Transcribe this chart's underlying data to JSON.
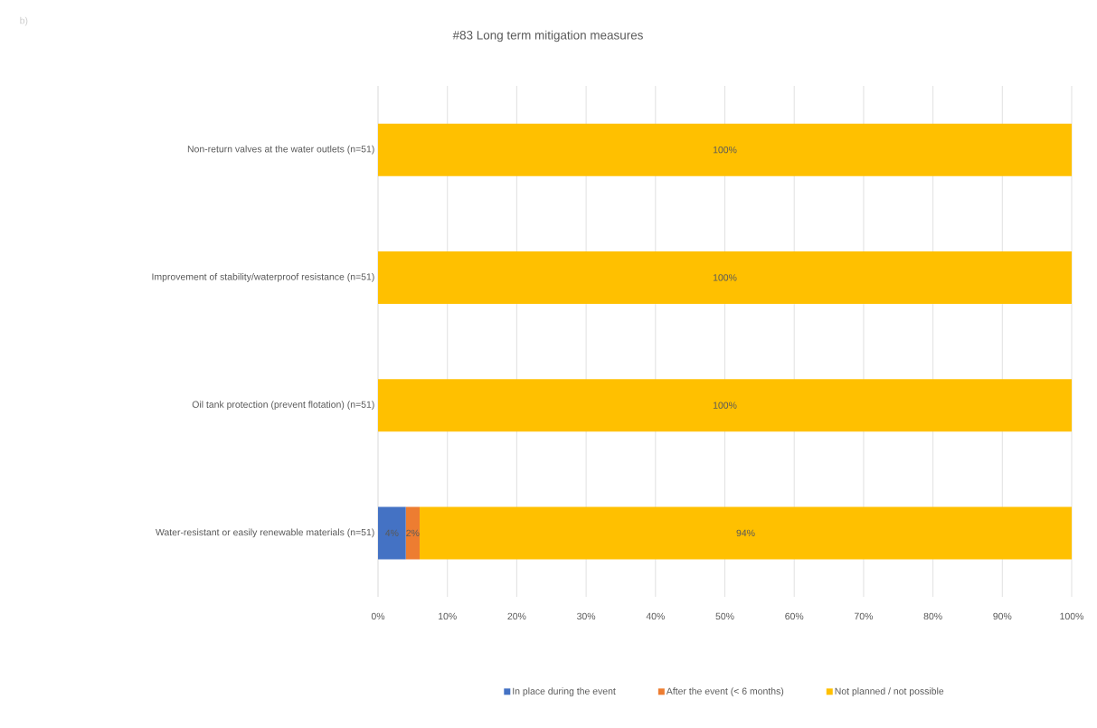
{
  "chart_data": {
    "type": "bar",
    "orientation": "horizontal",
    "stacked": true,
    "title": "#83 Long term mitigation measures",
    "categories": [
      "Non-return valves at the water outlets (n=51)",
      "Improvement of stability/waterproof resistance (n=51)",
      "Oil tank protection (prevent flotation) (n=51)",
      "Water-resistant or easily renewable materials (n=51)"
    ],
    "series": [
      {
        "name": "In place during the event",
        "color": "#4472c4",
        "values": [
          0,
          0,
          0,
          4
        ],
        "value_labels": [
          null,
          null,
          null,
          "4%"
        ]
      },
      {
        "name": "After the event (< 6 months)",
        "color": "#ed7d31",
        "values": [
          0,
          0,
          0,
          2
        ],
        "value_labels": [
          null,
          null,
          null,
          "2%"
        ]
      },
      {
        "name": "Not planned / not possible",
        "color": "#ffc000",
        "values": [
          100,
          100,
          100,
          94
        ],
        "value_labels": [
          "100%",
          "100%",
          "100%",
          "94%"
        ]
      }
    ],
    "xlim": [
      0,
      100
    ],
    "xticks": [
      {
        "value": 0,
        "label": "0%"
      },
      {
        "value": 10,
        "label": "10%"
      },
      {
        "value": 20,
        "label": "20%"
      },
      {
        "value": 30,
        "label": "30%"
      },
      {
        "value": 40,
        "label": "40%"
      },
      {
        "value": 50,
        "label": "50%"
      },
      {
        "value": 60,
        "label": "60%"
      },
      {
        "value": 70,
        "label": "70%"
      },
      {
        "value": 80,
        "label": "80%"
      },
      {
        "value": 90,
        "label": "90%"
      },
      {
        "value": 100,
        "label": "100%"
      }
    ],
    "grid": "x",
    "legend": "bottom",
    "annotations": [
      "b)"
    ]
  }
}
